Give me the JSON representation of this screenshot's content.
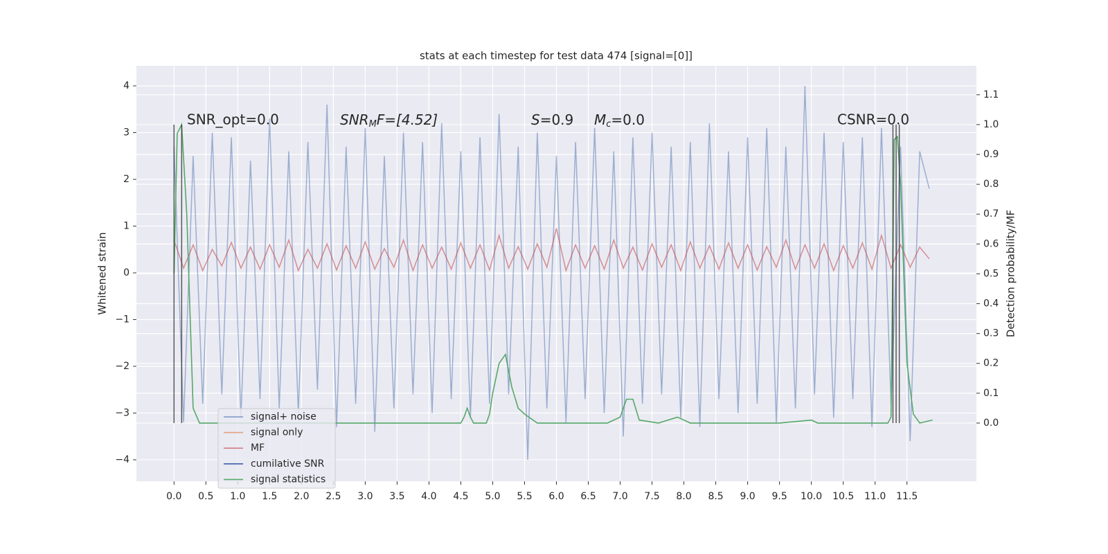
{
  "chart_data": {
    "type": "line",
    "title": "stats at each timestep for test data 474 [signal=[0]]",
    "ylabel": "Whitened strain",
    "y2label": "Detection probability/MF",
    "xlim": [
      -0.59,
      12.59
    ],
    "ylim": [
      -4.46,
      4.43
    ],
    "y2lim": [
      -0.195,
      1.197
    ],
    "xticks": [
      {
        "value": 0,
        "label": "0.0"
      },
      {
        "value": 0.5,
        "label": "0.5"
      },
      {
        "value": 1,
        "label": "1.0"
      },
      {
        "value": 1.5,
        "label": "1.5"
      },
      {
        "value": 2,
        "label": "2.0"
      },
      {
        "value": 2.5,
        "label": "2.5"
      },
      {
        "value": 3,
        "label": "3.0"
      },
      {
        "value": 3.5,
        "label": "3.5"
      },
      {
        "value": 4,
        "label": "4.0"
      },
      {
        "value": 4.5,
        "label": "4.5"
      },
      {
        "value": 5,
        "label": "5.0"
      },
      {
        "value": 5.5,
        "label": "5.5"
      },
      {
        "value": 6,
        "label": "6.0"
      },
      {
        "value": 6.5,
        "label": "6.5"
      },
      {
        "value": 7,
        "label": "7.0"
      },
      {
        "value": 7.5,
        "label": "7.5"
      },
      {
        "value": 8,
        "label": "8.0"
      },
      {
        "value": 8.5,
        "label": "8.5"
      },
      {
        "value": 9,
        "label": "9.0"
      },
      {
        "value": 9.5,
        "label": "9.5"
      },
      {
        "value": 10,
        "label": "10.0"
      },
      {
        "value": 10.5,
        "label": "10.5"
      },
      {
        "value": 11,
        "label": "11.0"
      },
      {
        "value": 11.5,
        "label": "11.5"
      }
    ],
    "yticks": [
      {
        "value": -4,
        "label": "−4"
      },
      {
        "value": -3,
        "label": "−3"
      },
      {
        "value": -2,
        "label": "−2"
      },
      {
        "value": -1,
        "label": "−1"
      },
      0,
      1,
      2,
      3,
      4
    ],
    "y2ticks": [
      {
        "value": 0,
        "label": "0.0"
      },
      {
        "value": 0.1,
        "label": "0.1"
      },
      {
        "value": 0.2,
        "label": "0.2"
      },
      {
        "value": 0.3,
        "label": "0.3"
      },
      {
        "value": 0.4,
        "label": "0.4"
      },
      {
        "value": 0.5,
        "label": "0.5"
      },
      {
        "value": 0.6,
        "label": "0.6"
      },
      {
        "value": 0.7,
        "label": "0.7"
      },
      {
        "value": 0.8,
        "label": "0.8"
      },
      {
        "value": 0.9,
        "label": "0.9"
      },
      {
        "value": 1,
        "label": "1.0"
      },
      {
        "value": 1.1,
        "label": "1.1"
      }
    ],
    "grid": true,
    "legend": "lower left",
    "x": [
      0,
      0.15,
      0.3,
      0.45,
      0.6,
      0.75,
      0.9,
      1.05,
      1.2,
      1.35,
      1.5,
      1.65,
      1.8,
      1.95,
      2.1,
      2.25,
      2.4,
      2.55,
      2.7,
      2.85,
      3,
      3.15,
      3.3,
      3.45,
      3.6,
      3.75,
      3.9,
      4.05,
      4.2,
      4.35,
      4.5,
      4.65,
      4.8,
      4.95,
      5.1,
      5.25,
      5.4,
      5.55,
      5.7,
      5.85,
      6,
      6.15,
      6.3,
      6.45,
      6.6,
      6.75,
      6.9,
      7.05,
      7.2,
      7.35,
      7.5,
      7.65,
      7.8,
      7.95,
      8.1,
      8.25,
      8.4,
      8.55,
      8.7,
      8.85,
      9,
      9.15,
      9.3,
      9.45,
      9.6,
      9.75,
      9.9,
      10.05,
      10.2,
      10.35,
      10.5,
      10.65,
      10.8,
      10.95,
      11.1,
      11.25,
      11.4,
      11.55,
      11.7,
      11.85
    ],
    "series": [
      {
        "name": "signal+ noise",
        "color": "#4c72b0",
        "values": [
          2.7,
          -3.2,
          2.5,
          -2.8,
          3.0,
          -2.6,
          2.9,
          -3.1,
          2.4,
          -2.7,
          3.3,
          -2.9,
          2.6,
          -3.0,
          2.8,
          -2.5,
          3.6,
          -3.3,
          2.7,
          -2.8,
          3.1,
          -3.4,
          2.5,
          -2.9,
          3.0,
          -2.6,
          2.8,
          -3.0,
          3.2,
          -2.7,
          2.6,
          -3.1,
          2.9,
          -2.8,
          3.4,
          -2.6,
          2.7,
          -4.0,
          3.0,
          -2.9,
          2.5,
          -3.2,
          2.8,
          -2.7,
          3.1,
          -3.0,
          2.6,
          -3.5,
          2.9,
          -2.8,
          3.0,
          -2.6,
          2.7,
          -3.1,
          2.8,
          -3.3,
          3.2,
          -2.7,
          2.6,
          -3.0,
          2.9,
          -2.8,
          3.1,
          -3.2,
          2.7,
          -2.9,
          4.0,
          -2.6,
          3.0,
          -3.1,
          2.8,
          -2.7,
          2.9,
          -3.3,
          3.1,
          -2.8,
          2.7,
          -3.6,
          2.6,
          1.8
        ]
      },
      {
        "name": "signal only",
        "color": "#dd8452"
      },
      {
        "name": "MF",
        "color": "#c44e52",
        "values": [
          0.7,
          0.1,
          0.6,
          0.05,
          0.5,
          0.15,
          0.65,
          0.1,
          0.55,
          0.08,
          0.6,
          0.12,
          0.7,
          0.05,
          0.5,
          0.1,
          0.62,
          0.06,
          0.58,
          0.1,
          0.66,
          0.08,
          0.52,
          0.12,
          0.7,
          0.05,
          0.6,
          0.1,
          0.55,
          0.08,
          0.64,
          0.1,
          0.6,
          0.06,
          0.8,
          0.1,
          0.56,
          0.08,
          0.62,
          0.12,
          0.95,
          0.05,
          0.6,
          0.1,
          0.58,
          0.08,
          0.7,
          0.1,
          0.55,
          0.06,
          0.62,
          0.12,
          0.6,
          0.05,
          0.66,
          0.1,
          0.58,
          0.08,
          0.64,
          0.1,
          0.6,
          0.06,
          0.56,
          0.12,
          0.7,
          0.08,
          0.6,
          0.1,
          0.62,
          0.05,
          0.58,
          0.1,
          0.64,
          0.08,
          0.8,
          0.1,
          0.6,
          0.12,
          0.55,
          0.3
        ]
      },
      {
        "name": "cumilative SNR",
        "color": "#3b5ea8"
      },
      {
        "name": "signal statistics",
        "color": "#55a868",
        "axis": "y2",
        "x": [
          0,
          0.05,
          0.12,
          0.2,
          0.3,
          0.4,
          1,
          2,
          3,
          4,
          4.5,
          4.55,
          4.6,
          4.65,
          4.7,
          4.9,
          4.95,
          5,
          5.1,
          5.2,
          5.3,
          5.4,
          5.5,
          5.7,
          6,
          6.5,
          6.8,
          7,
          7.1,
          7.2,
          7.3,
          7.6,
          7.9,
          8.1,
          9,
          9.5,
          10,
          10.1,
          10.5,
          11.2,
          11.25,
          11.3,
          11.35,
          11.4,
          11.5,
          11.6,
          11.7,
          11.9
        ],
        "values": [
          0.5,
          0.97,
          1.0,
          0.7,
          0.05,
          0.0,
          0.0,
          0.0,
          0.0,
          0.0,
          0.0,
          0.02,
          0.05,
          0.02,
          0.0,
          0.0,
          0.03,
          0.1,
          0.2,
          0.23,
          0.12,
          0.05,
          0.03,
          0.0,
          0.0,
          0.0,
          0.0,
          0.02,
          0.08,
          0.08,
          0.01,
          0.0,
          0.02,
          0.0,
          0.0,
          0.0,
          0.01,
          0.0,
          0.0,
          0.0,
          0.02,
          0.95,
          0.96,
          0.8,
          0.2,
          0.03,
          0.0,
          0.01
        ]
      }
    ],
    "vlines": [
      0,
      0.12,
      11.28,
      11.33,
      11.38
    ],
    "annotations": [
      "SNR_opt=0.0",
      [
        "SNR",
        "M",
        "F=[4.52]"
      ],
      [
        "S",
        "=0.9"
      ],
      [
        "M",
        "c",
        "=0.0"
      ],
      "CSNR=0.0"
    ]
  }
}
